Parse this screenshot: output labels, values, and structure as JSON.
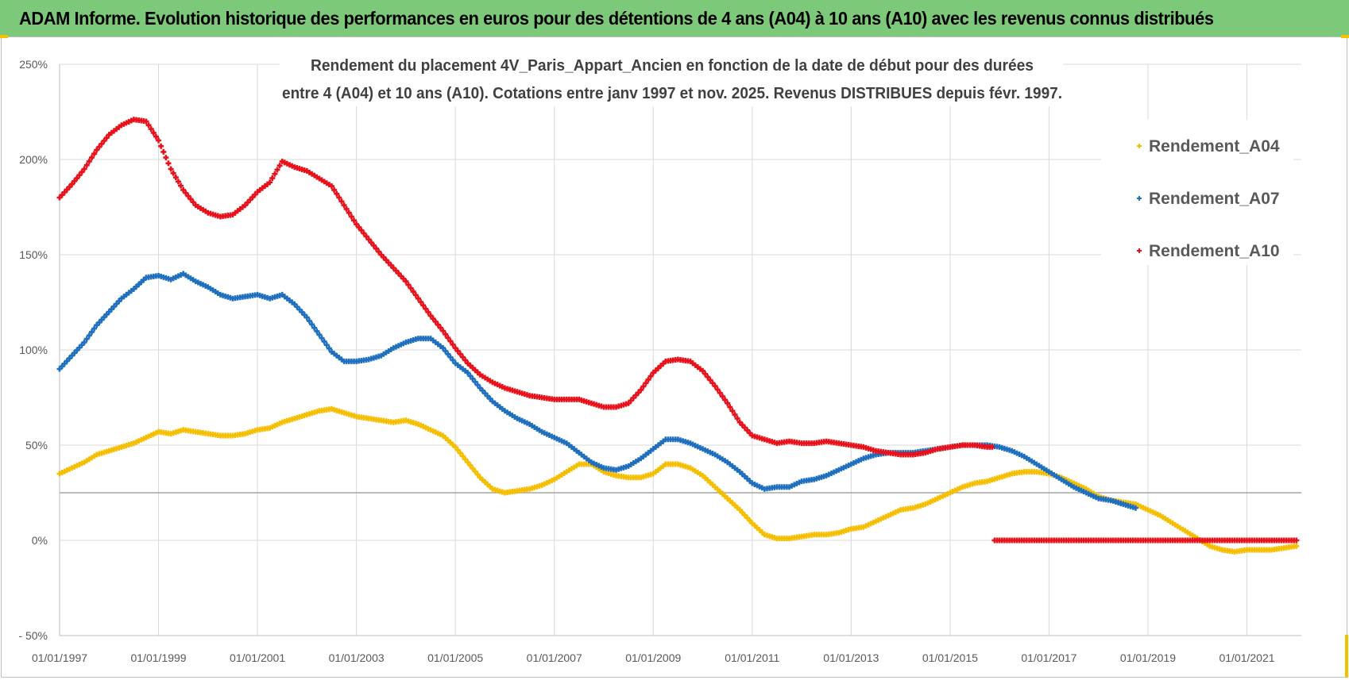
{
  "header": {
    "title": "ADAM Informe. Evolution historique des performances en euros pour des détentions de 4 ans (A04) à 10 ans (A10) avec les revenus connus distribués",
    "background": "#7dc97a"
  },
  "chart_data": {
    "type": "scatter",
    "title_line1": "Rendement du placement 4V_Paris_Appart_Ancien en fonction de la date de début pour des durées",
    "title_line2": "entre 4 (A04) et 10 ans (A10). Cotations entre janv 1997 et nov. 2025. Revenus DISTRIBUES depuis févr. 1997.",
    "xlabel": "",
    "ylabel": "",
    "x_range": [
      1997.0,
      2022.1
    ],
    "ylim": [
      -50,
      250
    ],
    "x_ticks": [
      "01/01/1997",
      "01/01/1999",
      "01/01/2001",
      "01/01/2003",
      "01/01/2005",
      "01/01/2007",
      "01/01/2009",
      "01/01/2011",
      "01/01/2013",
      "01/01/2015",
      "01/01/2017",
      "01/01/2019",
      "01/01/2021"
    ],
    "y_ticks": [
      "- 50%",
      "0%",
      "50%",
      "100%",
      "150%",
      "200%",
      "250%"
    ],
    "reference_line_y": 25,
    "grid": true,
    "legend_position": "top-right",
    "series": [
      {
        "name": "Rendement_A04",
        "color": "#f5be00",
        "marker": "+",
        "x": [
          1997.0,
          1997.25,
          1997.5,
          1997.75,
          1998.0,
          1998.25,
          1998.5,
          1998.75,
          1999.0,
          1999.25,
          1999.5,
          1999.75,
          2000.0,
          2000.25,
          2000.5,
          2000.75,
          2001.0,
          2001.25,
          2001.5,
          2001.75,
          2002.0,
          2002.25,
          2002.5,
          2002.75,
          2003.0,
          2003.25,
          2003.5,
          2003.75,
          2004.0,
          2004.25,
          2004.5,
          2004.75,
          2005.0,
          2005.25,
          2005.5,
          2005.75,
          2006.0,
          2006.25,
          2006.5,
          2006.75,
          2007.0,
          2007.25,
          2007.5,
          2007.75,
          2008.0,
          2008.25,
          2008.5,
          2008.75,
          2009.0,
          2009.25,
          2009.5,
          2009.75,
          2010.0,
          2010.25,
          2010.5,
          2010.75,
          2011.0,
          2011.25,
          2011.5,
          2011.75,
          2012.0,
          2012.25,
          2012.5,
          2012.75,
          2013.0,
          2013.25,
          2013.5,
          2013.75,
          2014.0,
          2014.25,
          2014.5,
          2014.75,
          2015.0,
          2015.25,
          2015.5,
          2015.75,
          2016.0,
          2016.25,
          2016.5,
          2016.75,
          2017.0,
          2017.25,
          2017.5,
          2017.75,
          2018.0,
          2018.25,
          2018.5,
          2018.75,
          2019.0,
          2019.25,
          2019.5,
          2019.75,
          2020.0,
          2020.25,
          2020.5,
          2020.75,
          2021.0,
          2021.25,
          2021.5,
          2021.75,
          2022.0
        ],
        "y": [
          35,
          38,
          41,
          45,
          47,
          49,
          51,
          54,
          57,
          56,
          58,
          57,
          56,
          55,
          55,
          56,
          58,
          59,
          62,
          64,
          66,
          68,
          69,
          67,
          65,
          64,
          63,
          62,
          63,
          61,
          58,
          55,
          49,
          41,
          33,
          27,
          25,
          26,
          27,
          29,
          32,
          36,
          40,
          40,
          36,
          34,
          33,
          33,
          35,
          40,
          40,
          38,
          34,
          28,
          22,
          16,
          9,
          3,
          1,
          1,
          2,
          3,
          3,
          4,
          6,
          7,
          10,
          13,
          16,
          17,
          19,
          22,
          25,
          28,
          30,
          31,
          33,
          35,
          36,
          36,
          35,
          33,
          30,
          27,
          23,
          21,
          20,
          19,
          16,
          13,
          9,
          5,
          1,
          -3,
          -5,
          -6,
          -5,
          -5,
          -5,
          -4,
          -3
        ]
      },
      {
        "name": "Rendement_A07",
        "color": "#1f6fbf",
        "marker": "+",
        "x": [
          1997.0,
          1997.25,
          1997.5,
          1997.75,
          1998.0,
          1998.25,
          1998.5,
          1998.75,
          1999.0,
          1999.25,
          1999.5,
          1999.75,
          2000.0,
          2000.25,
          2000.5,
          2000.75,
          2001.0,
          2001.25,
          2001.5,
          2001.75,
          2002.0,
          2002.25,
          2002.5,
          2002.75,
          2003.0,
          2003.25,
          2003.5,
          2003.75,
          2004.0,
          2004.25,
          2004.5,
          2004.75,
          2005.0,
          2005.25,
          2005.5,
          2005.75,
          2006.0,
          2006.25,
          2006.5,
          2006.75,
          2007.0,
          2007.25,
          2007.5,
          2007.75,
          2008.0,
          2008.25,
          2008.5,
          2008.75,
          2009.0,
          2009.25,
          2009.5,
          2009.75,
          2010.0,
          2010.25,
          2010.5,
          2010.75,
          2011.0,
          2011.25,
          2011.5,
          2011.75,
          2012.0,
          2012.25,
          2012.5,
          2012.75,
          2013.0,
          2013.25,
          2013.5,
          2013.75,
          2014.0,
          2014.25,
          2014.5,
          2014.75,
          2015.0,
          2015.25,
          2015.5,
          2015.75,
          2016.0,
          2016.25,
          2016.5,
          2016.75,
          2017.0,
          2017.25,
          2017.5,
          2017.75,
          2018.0,
          2018.25,
          2018.5,
          2018.75
        ],
        "y": [
          90,
          97,
          104,
          113,
          120,
          127,
          132,
          138,
          139,
          137,
          140,
          136,
          133,
          129,
          127,
          128,
          129,
          127,
          129,
          124,
          117,
          108,
          99,
          94,
          94,
          95,
          97,
          101,
          104,
          106,
          106,
          101,
          93,
          88,
          80,
          73,
          68,
          64,
          61,
          57,
          54,
          51,
          46,
          41,
          38,
          37,
          39,
          43,
          48,
          53,
          53,
          51,
          48,
          45,
          41,
          36,
          30,
          27,
          28,
          28,
          31,
          32,
          34,
          37,
          40,
          43,
          45,
          46,
          46,
          46,
          47,
          48,
          49,
          50,
          50,
          50,
          49,
          47,
          44,
          40,
          36,
          32,
          28,
          25,
          22,
          21,
          19,
          17
        ]
      },
      {
        "name": "Rendement_A10",
        "color": "#e8101a",
        "marker": "+",
        "x": [
          1997.0,
          1997.25,
          1997.5,
          1997.75,
          1998.0,
          1998.25,
          1998.5,
          1998.75,
          1999.0,
          1999.25,
          1999.5,
          1999.75,
          2000.0,
          2000.25,
          2000.5,
          2000.75,
          2001.0,
          2001.25,
          2001.5,
          2001.75,
          2002.0,
          2002.25,
          2002.5,
          2002.75,
          2003.0,
          2003.25,
          2003.5,
          2003.75,
          2004.0,
          2004.25,
          2004.5,
          2004.75,
          2005.0,
          2005.25,
          2005.5,
          2005.75,
          2006.0,
          2006.25,
          2006.5,
          2006.75,
          2007.0,
          2007.25,
          2007.5,
          2007.75,
          2008.0,
          2008.25,
          2008.5,
          2008.75,
          2009.0,
          2009.25,
          2009.5,
          2009.75,
          2010.0,
          2010.25,
          2010.5,
          2010.75,
          2011.0,
          2011.25,
          2011.5,
          2011.75,
          2012.0,
          2012.25,
          2012.5,
          2012.75,
          2013.0,
          2013.25,
          2013.5,
          2013.75,
          2014.0,
          2014.25,
          2014.5,
          2014.75,
          2015.0,
          2015.25,
          2015.5,
          2015.75,
          2016.0,
          2016.25,
          2016.5,
          2016.75,
          2017.0,
          2017.25,
          2017.5,
          2017.75,
          2018.0,
          2018.25,
          2018.5,
          2018.75,
          2019.0,
          2019.25,
          2019.5,
          2019.75,
          2020.0,
          2020.25,
          2020.5,
          2020.75,
          2021.0,
          2021.25,
          2021.5,
          2021.75,
          2022.0
        ],
        "y": [
          180,
          187,
          195,
          205,
          213,
          218,
          221,
          220,
          210,
          195,
          184,
          176,
          172,
          170,
          171,
          176,
          183,
          188,
          199,
          196,
          194,
          190,
          186,
          176,
          166,
          158,
          150,
          143,
          136,
          127,
          118,
          110,
          101,
          93,
          87,
          83,
          80,
          78,
          76,
          75,
          74,
          74,
          74,
          72,
          70,
          70,
          72,
          79,
          88,
          94,
          95,
          94,
          89,
          81,
          72,
          62,
          55,
          53,
          51,
          52,
          51,
          51,
          52,
          51,
          50,
          49,
          47,
          46,
          45,
          45,
          46,
          48,
          49,
          50,
          50,
          49,
          0,
          0,
          0,
          0,
          0,
          0,
          0,
          0,
          0,
          0,
          0,
          0,
          0,
          0,
          0,
          0,
          0,
          0,
          0,
          0,
          0,
          0,
          0,
          0,
          0
        ]
      }
    ]
  }
}
